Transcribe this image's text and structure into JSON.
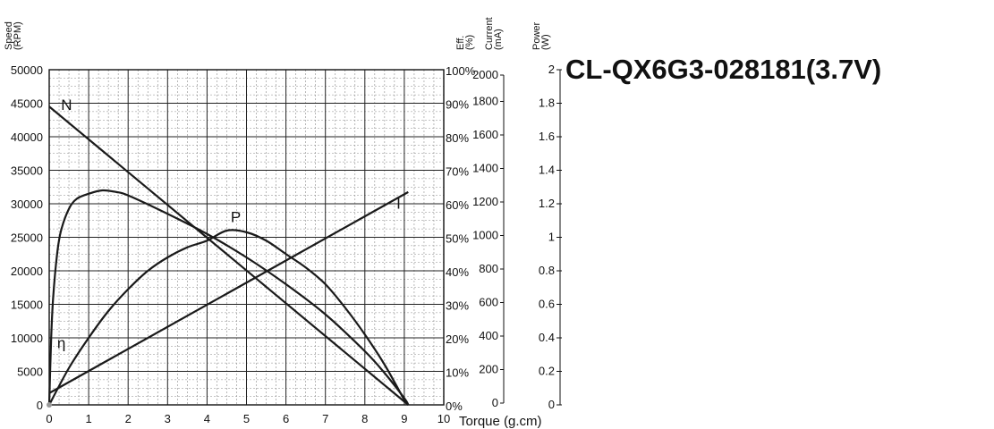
{
  "chart_data": {
    "type": "line",
    "title": "CL-QX6G3-028181(3.7V)",
    "xlabel": "Torque (g.cm)",
    "xlim": [
      0,
      10
    ],
    "x_ticks": [
      "0",
      "1",
      "2",
      "3",
      "4",
      "5",
      "6",
      "7",
      "8",
      "9",
      "10"
    ],
    "axes": {
      "speed": {
        "label_lines": [
          "Speed",
          "(RPM)"
        ],
        "ylim": [
          0,
          50000
        ],
        "ticks": [
          "0",
          "5000",
          "10000",
          "15000",
          "20000",
          "25000",
          "30000",
          "35000",
          "40000",
          "45000",
          "50000"
        ]
      },
      "efficiency": {
        "label_lines": [
          "Eff.",
          "(%)"
        ],
        "ylim": [
          0,
          100
        ],
        "ticks": [
          "0%",
          "10%",
          "20%",
          "30%",
          "40%",
          "50%",
          "60%",
          "70%",
          "80%",
          "90%",
          "100%"
        ]
      },
      "current": {
        "label_lines": [
          "Current",
          "(mA)"
        ],
        "ylim": [
          0,
          2000
        ],
        "ticks": [
          "0",
          "200",
          "400",
          "600",
          "800",
          "1000",
          "1200",
          "1400",
          "1600",
          "1800",
          "2000"
        ]
      },
      "power": {
        "label_lines": [
          "Power",
          "(W)"
        ],
        "ylim": [
          0,
          2
        ],
        "ticks": [
          "0",
          "0.2",
          "0.4",
          "0.6",
          "0.8",
          "1",
          "1.2",
          "1.4",
          "1.6",
          "1.8",
          "2"
        ]
      }
    },
    "grid": true,
    "series": [
      {
        "name": "N",
        "axis": "speed",
        "x": [
          0,
          9.1
        ],
        "y": [
          44500,
          0
        ]
      },
      {
        "name": "I",
        "axis": "current",
        "x": [
          0,
          9.1
        ],
        "y": [
          70,
          1270
        ]
      },
      {
        "name": "P",
        "axis": "power",
        "x": [
          0,
          0.5,
          1,
          1.5,
          2,
          2.5,
          3,
          3.5,
          4,
          4.5,
          5,
          5.5,
          6,
          6.5,
          7,
          7.5,
          8,
          8.5,
          9,
          9.1
        ],
        "y": [
          0,
          0.22,
          0.4,
          0.56,
          0.69,
          0.8,
          0.88,
          0.94,
          0.98,
          1.04,
          1.03,
          0.98,
          0.9,
          0.82,
          0.72,
          0.58,
          0.42,
          0.24,
          0.03,
          0
        ]
      },
      {
        "name": "η",
        "axis": "efficiency",
        "x": [
          0,
          0.05,
          0.1,
          0.2,
          0.3,
          0.5,
          0.7,
          1,
          1.35,
          1.7,
          2,
          3,
          4,
          5,
          6,
          7,
          8,
          8.5,
          9,
          9.1
        ],
        "y": [
          0,
          20,
          32,
          45,
          52,
          58.5,
          61.5,
          63,
          64,
          63.5,
          62.5,
          57,
          51,
          44,
          36,
          27,
          16,
          9.5,
          2,
          0
        ]
      }
    ]
  }
}
